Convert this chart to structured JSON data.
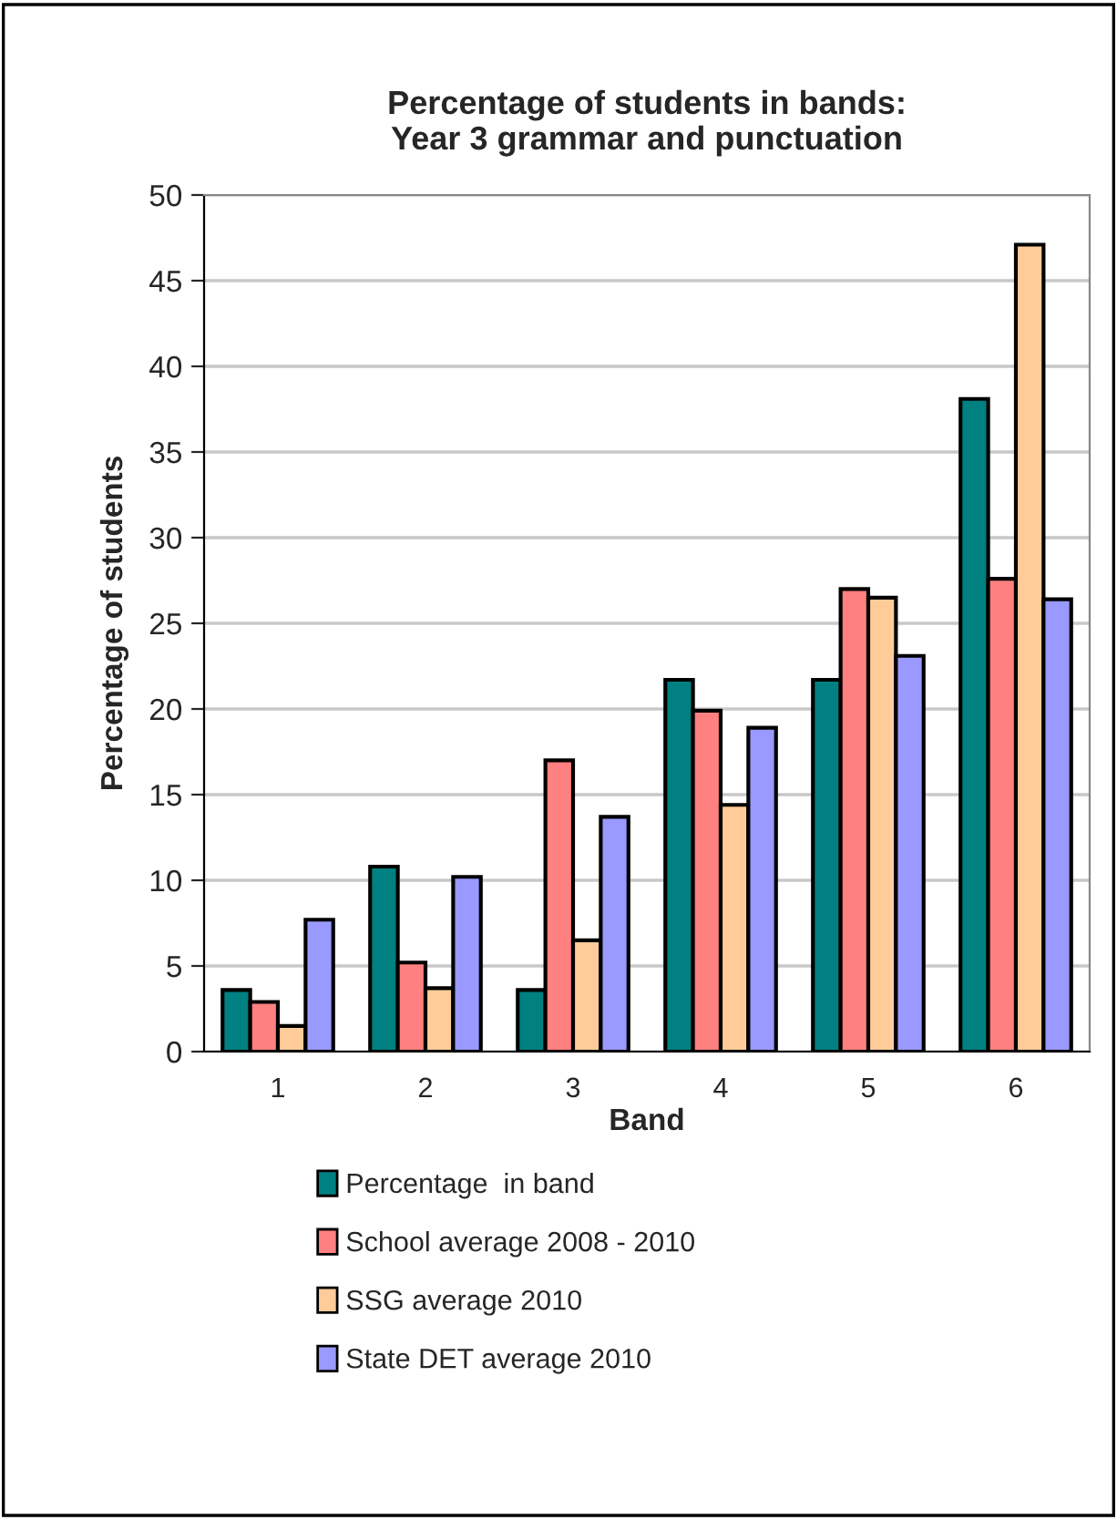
{
  "chart_data": {
    "type": "bar",
    "title": "Percentage of students in bands:\nYear 3 grammar and punctuation",
    "xlabel": "Band",
    "ylabel": "Percentage of students",
    "categories": [
      "1",
      "2",
      "3",
      "4",
      "5",
      "6"
    ],
    "series": [
      {
        "name": "Percentage  in band",
        "color": "#008080",
        "values": [
          3.6,
          10.8,
          3.6,
          21.7,
          21.7,
          38.1
        ]
      },
      {
        "name": "School average 2008 - 2010",
        "color": "#ff8080",
        "values": [
          2.9,
          5.2,
          17.0,
          19.9,
          27.0,
          27.6
        ]
      },
      {
        "name": "SSG average 2010",
        "color": "#ffcc99",
        "values": [
          1.5,
          3.7,
          6.5,
          14.4,
          26.5,
          47.1
        ]
      },
      {
        "name": "State DET average 2010",
        "color": "#9999ff",
        "values": [
          7.7,
          10.2,
          13.7,
          18.9,
          23.1,
          26.4
        ]
      }
    ],
    "ylim": [
      0,
      50
    ],
    "yticks": [
      0,
      5,
      10,
      15,
      20,
      25,
      30,
      35,
      40,
      45,
      50
    ],
    "grid": "y",
    "legend": "bottom"
  }
}
